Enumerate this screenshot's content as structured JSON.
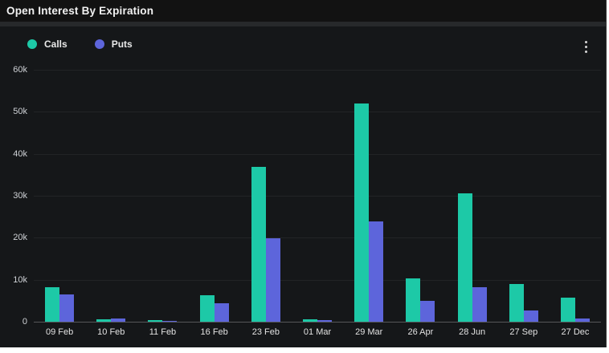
{
  "header": {
    "title": "Open Interest By Expiration"
  },
  "menu": {
    "kebab_icon": "kebab-menu"
  },
  "colors": {
    "calls": "#1dc9a7",
    "puts": "#5d65db",
    "panel_bg": "#151719",
    "titlebar_bg": "#121212",
    "grid": "rgba(255,255,255,0.06)"
  },
  "chart_data": {
    "type": "bar",
    "title": "Open Interest By Expiration",
    "categories": [
      "09 Feb",
      "10 Feb",
      "11 Feb",
      "16 Feb",
      "23 Feb",
      "01 Mar",
      "29 Mar",
      "26 Apr",
      "28 Jun",
      "27 Sep",
      "27 Dec"
    ],
    "series": [
      {
        "name": "Calls",
        "color": "#1dc9a7",
        "values": [
          8200,
          500,
          350,
          6300,
          36800,
          500,
          52000,
          10300,
          30600,
          9000,
          5700
        ]
      },
      {
        "name": "Puts",
        "color": "#5d65db",
        "values": [
          6500,
          700,
          150,
          4400,
          19800,
          450,
          23900,
          5000,
          8200,
          2700,
          800
        ]
      }
    ],
    "xlabel": "",
    "ylabel": "",
    "ylim": [
      0,
      60000
    ],
    "yticks": [
      {
        "value": 60000,
        "label": "60k"
      },
      {
        "value": 50000,
        "label": "50k"
      },
      {
        "value": 40000,
        "label": "40k"
      },
      {
        "value": 30000,
        "label": "30k"
      },
      {
        "value": 20000,
        "label": "20k"
      },
      {
        "value": 10000,
        "label": "10k"
      },
      {
        "value": 0,
        "label": "0"
      }
    ],
    "grid": true,
    "legend_position": "top-left"
  }
}
